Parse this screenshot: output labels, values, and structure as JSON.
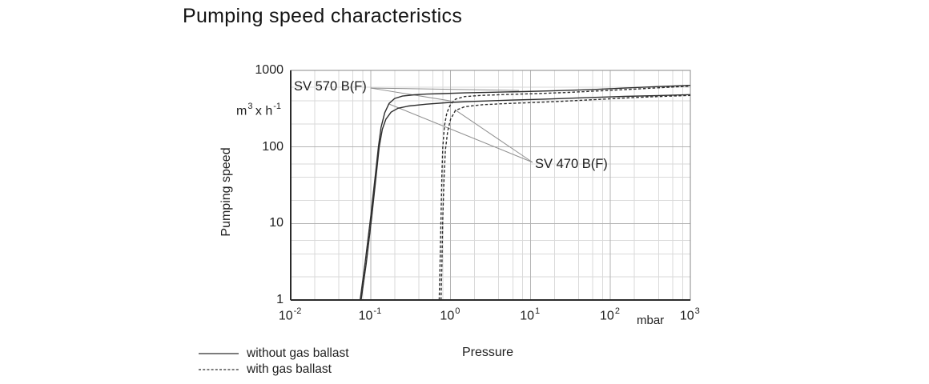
{
  "title": "Pumping speed characteristics",
  "chart_data": {
    "type": "line",
    "title": "Pumping speed characteristics",
    "xlabel": "Pressure",
    "x_unit": "mbar",
    "ylabel": "Pumping speed",
    "y_unit_parts": {
      "base": "m",
      "exp": "3",
      "mid": " x h",
      "exp2": "-1"
    },
    "x_scale": "log",
    "y_scale": "log",
    "xlim": [
      0.01,
      1000
    ],
    "ylim": [
      1,
      1000
    ],
    "x_tick_base": "10",
    "x_tick_exponents": [
      "-2",
      "-1",
      "0",
      "1",
      "2",
      "3"
    ],
    "y_tick_labels": [
      "1000",
      "100",
      "10",
      "1"
    ],
    "grid": "log major+minor",
    "series": [
      {
        "name": "SV 570 B(F) without gas ballast",
        "pump": "SV 570 B(F)",
        "style": "solid",
        "points": [
          [
            0.074,
            1
          ],
          [
            0.085,
            3
          ],
          [
            0.1,
            12
          ],
          [
            0.115,
            45
          ],
          [
            0.125,
            100
          ],
          [
            0.135,
            180
          ],
          [
            0.15,
            280
          ],
          [
            0.17,
            370
          ],
          [
            0.2,
            430
          ],
          [
            0.25,
            462
          ],
          [
            0.35,
            480
          ],
          [
            0.5,
            490
          ],
          [
            0.8,
            498
          ],
          [
            1.5,
            508
          ],
          [
            3,
            517
          ],
          [
            8,
            528
          ],
          [
            20,
            542
          ],
          [
            60,
            563
          ],
          [
            150,
            588
          ],
          [
            400,
            615
          ],
          [
            1000,
            638
          ]
        ]
      },
      {
        "name": "SV 570 B(F) with gas ballast",
        "pump": "SV 570 B(F)",
        "style": "dashed",
        "points": [
          [
            0.72,
            1
          ],
          [
            0.74,
            3
          ],
          [
            0.76,
            12
          ],
          [
            0.78,
            45
          ],
          [
            0.8,
            100
          ],
          [
            0.84,
            190
          ],
          [
            0.9,
            280
          ],
          [
            1.0,
            360
          ],
          [
            1.15,
            420
          ],
          [
            1.5,
            455
          ],
          [
            2.5,
            472
          ],
          [
            5,
            485
          ],
          [
            12,
            498
          ],
          [
            30,
            516
          ],
          [
            80,
            542
          ],
          [
            200,
            570
          ],
          [
            500,
            600
          ],
          [
            1000,
            624
          ]
        ]
      },
      {
        "name": "SV 470 B(F) without gas ballast",
        "pump": "SV 470 B(F)",
        "style": "solid",
        "points": [
          [
            0.076,
            1
          ],
          [
            0.088,
            3
          ],
          [
            0.103,
            12
          ],
          [
            0.118,
            45
          ],
          [
            0.128,
            100
          ],
          [
            0.14,
            170
          ],
          [
            0.155,
            230
          ],
          [
            0.18,
            285
          ],
          [
            0.22,
            320
          ],
          [
            0.3,
            343
          ],
          [
            0.5,
            362
          ],
          [
            1,
            382
          ],
          [
            2,
            394
          ],
          [
            5,
            407
          ],
          [
            15,
            421
          ],
          [
            50,
            440
          ],
          [
            150,
            457
          ],
          [
            400,
            470
          ],
          [
            1000,
            482
          ]
        ]
      },
      {
        "name": "SV 470 B(F) with gas ballast",
        "pump": "SV 470 B(F)",
        "style": "dashed",
        "points": [
          [
            0.76,
            1
          ],
          [
            0.78,
            3
          ],
          [
            0.8,
            12
          ],
          [
            0.83,
            40
          ],
          [
            0.86,
            90
          ],
          [
            0.92,
            160
          ],
          [
            1.0,
            230
          ],
          [
            1.15,
            300
          ],
          [
            1.5,
            335
          ],
          [
            2.5,
            356
          ],
          [
            5,
            369
          ],
          [
            12,
            382
          ],
          [
            30,
            399
          ],
          [
            80,
            420
          ],
          [
            200,
            442
          ],
          [
            500,
            460
          ],
          [
            1000,
            471
          ]
        ]
      }
    ],
    "annotations": [
      {
        "label": "SV 570 B(F)",
        "leader_from": [
          0.1,
          588
        ],
        "leader_to": [
          [
            7.2,
            547
          ],
          [
            1.0,
            400
          ]
        ]
      },
      {
        "label": "SV 470 B(F)",
        "leader_from": [
          10.6,
          63
        ],
        "leader_to": [
          [
            1.13,
            307
          ],
          [
            0.171,
            363
          ]
        ]
      }
    ],
    "legend": [
      {
        "style": "solid",
        "label": "without gas ballast"
      },
      {
        "style": "dashed",
        "label": "with gas ballast"
      }
    ],
    "colors": {
      "curve": "#2e2e2e",
      "grid_minor": "#dadada",
      "grid_major": "#b3b3b3",
      "frame": "#8a8a8a",
      "axis": "#2b2b2b",
      "leader": "#8f8f8f",
      "text": "#222222"
    }
  }
}
